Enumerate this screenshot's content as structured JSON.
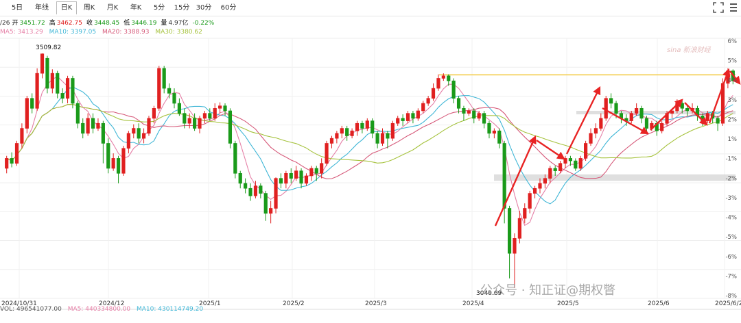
{
  "tabs": [
    {
      "label": "5日",
      "active": false
    },
    {
      "label": "年线",
      "active": false
    },
    {
      "label": "日K",
      "active": true
    },
    {
      "label": "周K",
      "active": false
    },
    {
      "label": "月K",
      "active": false
    },
    {
      "label": "年K",
      "active": false
    },
    {
      "label": "5分",
      "active": false
    },
    {
      "label": "15分",
      "active": false
    },
    {
      "label": "30分",
      "active": false
    },
    {
      "label": "60分",
      "active": false
    }
  ],
  "info": {
    "date_fragment": "/26",
    "open_label": "开",
    "open": "3451.72",
    "high_label": "高",
    "high": "3462.75",
    "close_label": "收",
    "close": "3448.45",
    "low_label": "低",
    "low": "3446.19",
    "volume_label": "量",
    "volume": "4.97亿",
    "change": "-0.22%"
  },
  "ma": {
    "ma5": "MA5: 3413.29",
    "ma10": "MA10: 3397.05",
    "ma20": "MA20: 3388.93",
    "ma30": "MA30: 3380.62"
  },
  "volume_panel": {
    "vol": "VOL: 496541077.00",
    "ma5": "MA5: 440334800.00",
    "ma10": "MA10: 430114749.20"
  },
  "annotations": {
    "high": "3509.82",
    "low": "3040.69"
  },
  "watermark": {
    "text": "公众号 · 知正证@期权瞥",
    "logo": "sina 新浪财经"
  },
  "colors": {
    "up": "#e02020",
    "down": "#1a9a1a",
    "ma5": "#e57fa6",
    "ma10": "#3fb6d6",
    "ma20": "#d65a7a",
    "ma30": "#a5c23c",
    "resistance": "#f3c93e",
    "arrow": "#e82323",
    "zone": "#d7d7d7"
  },
  "chart_data": {
    "type": "candlestick",
    "x_tick_labels": [
      "2024/10/31",
      "2024/12",
      "2025/1",
      "2025/2",
      "2025/3",
      "2025/4",
      "2025/5",
      "2025/6",
      "2025/6/26"
    ],
    "right_axis_labels": [
      "6%",
      "5%",
      "4%",
      "3%",
      "2%",
      "1%",
      "-1%",
      "-2%",
      "-3%",
      "-4%",
      "-5%",
      "-6%",
      "-7%",
      "-8%"
    ],
    "ylim": [
      3020,
      3540
    ],
    "annotated_high": 3509.82,
    "annotated_low": 3040.69,
    "resistance_level": 3467,
    "candles": [
      [
        3280,
        3300,
        3270,
        3305
      ],
      [
        3300,
        3290,
        3282,
        3312
      ],
      [
        3290,
        3330,
        3285,
        3335
      ],
      [
        3330,
        3360,
        3320,
        3370
      ],
      [
        3360,
        3420,
        3350,
        3425
      ],
      [
        3420,
        3400,
        3390,
        3430
      ],
      [
        3400,
        3470,
        3395,
        3480
      ],
      [
        3470,
        3509,
        3460,
        3509.82
      ],
      [
        3500,
        3440,
        3430,
        3505
      ],
      [
        3440,
        3470,
        3430,
        3478
      ],
      [
        3470,
        3430,
        3420,
        3475
      ],
      [
        3430,
        3420,
        3410,
        3440
      ],
      [
        3420,
        3460,
        3410,
        3465
      ],
      [
        3460,
        3410,
        3400,
        3465
      ],
      [
        3410,
        3370,
        3360,
        3415
      ],
      [
        3370,
        3350,
        3340,
        3380
      ],
      [
        3350,
        3380,
        3345,
        3390
      ],
      [
        3380,
        3360,
        3350,
        3390
      ],
      [
        3360,
        3370,
        3355,
        3380
      ],
      [
        3370,
        3330,
        3290,
        3375
      ],
      [
        3330,
        3280,
        3270,
        3340
      ],
      [
        3280,
        3300,
        3275,
        3310
      ],
      [
        3300,
        3270,
        3250,
        3305
      ],
      [
        3270,
        3320,
        3265,
        3325
      ],
      [
        3320,
        3350,
        3310,
        3355
      ],
      [
        3350,
        3360,
        3340,
        3368
      ],
      [
        3360,
        3340,
        3330,
        3370
      ],
      [
        3340,
        3350,
        3330,
        3360
      ],
      [
        3350,
        3380,
        3345,
        3385
      ],
      [
        3380,
        3400,
        3370,
        3405
      ],
      [
        3400,
        3480,
        3395,
        3485
      ],
      [
        3480,
        3440,
        3430,
        3485
      ],
      [
        3440,
        3430,
        3420,
        3450
      ],
      [
        3430,
        3410,
        3400,
        3440
      ],
      [
        3410,
        3390,
        3385,
        3420
      ],
      [
        3390,
        3370,
        3360,
        3400
      ],
      [
        3370,
        3380,
        3360,
        3390
      ],
      [
        3380,
        3360,
        3355,
        3390
      ],
      [
        3360,
        3380,
        3350,
        3385
      ],
      [
        3380,
        3390,
        3370,
        3395
      ],
      [
        3390,
        3380,
        3375,
        3400
      ],
      [
        3380,
        3400,
        3375,
        3410
      ],
      [
        3400,
        3405,
        3390,
        3412
      ],
      [
        3405,
        3395,
        3385,
        3410
      ],
      [
        3395,
        3330,
        3320,
        3400
      ],
      [
        3330,
        3270,
        3260,
        3335
      ],
      [
        3270,
        3250,
        3240,
        3275
      ],
      [
        3250,
        3240,
        3230,
        3260
      ],
      [
        3240,
        3225,
        3215,
        3250
      ],
      [
        3225,
        3245,
        3220,
        3255
      ],
      [
        3245,
        3230,
        3220,
        3250
      ],
      [
        3230,
        3190,
        3175,
        3235
      ],
      [
        3190,
        3200,
        3170,
        3215
      ],
      [
        3200,
        3260,
        3190,
        3262
      ],
      [
        3260,
        3250,
        3240,
        3270
      ],
      [
        3250,
        3270,
        3240,
        3275
      ],
      [
        3270,
        3260,
        3250,
        3280
      ],
      [
        3260,
        3275,
        3255,
        3285
      ],
      [
        3275,
        3250,
        3240,
        3280
      ],
      [
        3250,
        3265,
        3245,
        3270
      ],
      [
        3265,
        3280,
        3255,
        3285
      ],
      [
        3280,
        3270,
        3255,
        3285
      ],
      [
        3270,
        3290,
        3260,
        3300
      ],
      [
        3290,
        3330,
        3285,
        3335
      ],
      [
        3330,
        3340,
        3320,
        3345
      ],
      [
        3340,
        3350,
        3330,
        3355
      ],
      [
        3350,
        3360,
        3340,
        3365
      ],
      [
        3360,
        3345,
        3335,
        3365
      ],
      [
        3345,
        3355,
        3340,
        3360
      ],
      [
        3355,
        3370,
        3345,
        3375
      ],
      [
        3370,
        3360,
        3350,
        3375
      ],
      [
        3360,
        3375,
        3355,
        3380
      ],
      [
        3375,
        3350,
        3340,
        3380
      ],
      [
        3350,
        3330,
        3320,
        3355
      ],
      [
        3330,
        3350,
        3325,
        3360
      ],
      [
        3350,
        3340,
        3320,
        3355
      ],
      [
        3340,
        3370,
        3335,
        3375
      ],
      [
        3370,
        3380,
        3365,
        3385
      ],
      [
        3380,
        3375,
        3365,
        3388
      ],
      [
        3375,
        3390,
        3370,
        3395
      ],
      [
        3390,
        3380,
        3370,
        3395
      ],
      [
        3380,
        3395,
        3375,
        3400
      ],
      [
        3395,
        3410,
        3390,
        3415
      ],
      [
        3410,
        3420,
        3405,
        3425
      ],
      [
        3420,
        3440,
        3415,
        3450
      ],
      [
        3440,
        3460,
        3435,
        3468
      ],
      [
        3460,
        3465,
        3455,
        3470
      ],
      [
        3465,
        3455,
        3445,
        3468
      ],
      [
        3455,
        3420,
        3410,
        3460
      ],
      [
        3420,
        3400,
        3390,
        3425
      ],
      [
        3400,
        3390,
        3375,
        3405
      ],
      [
        3390,
        3395,
        3385,
        3400
      ],
      [
        3395,
        3380,
        3370,
        3400
      ],
      [
        3380,
        3390,
        3375,
        3395
      ],
      [
        3390,
        3370,
        3360,
        3395
      ],
      [
        3370,
        3350,
        3340,
        3375
      ],
      [
        3350,
        3355,
        3340,
        3360
      ],
      [
        3355,
        3330,
        3320,
        3360
      ],
      [
        3330,
        3200,
        3170,
        3335
      ],
      [
        3200,
        3110,
        3060,
        3205
      ],
      [
        3110,
        3140,
        3040.69,
        3150
      ],
      [
        3140,
        3180,
        3130,
        3195
      ],
      [
        3180,
        3200,
        3170,
        3210
      ],
      [
        3200,
        3230,
        3190,
        3235
      ],
      [
        3230,
        3240,
        3220,
        3245
      ],
      [
        3240,
        3250,
        3230,
        3260
      ],
      [
        3250,
        3260,
        3240,
        3268
      ],
      [
        3260,
        3280,
        3250,
        3285
      ],
      [
        3280,
        3275,
        3265,
        3285
      ],
      [
        3275,
        3290,
        3270,
        3295
      ],
      [
        3290,
        3300,
        3280,
        3305
      ],
      [
        3300,
        3295,
        3285,
        3305
      ],
      [
        3295,
        3280,
        3275,
        3300
      ],
      [
        3280,
        3300,
        3275,
        3305
      ],
      [
        3300,
        3330,
        3295,
        3335
      ],
      [
        3330,
        3350,
        3325,
        3360
      ],
      [
        3350,
        3360,
        3340,
        3370
      ],
      [
        3360,
        3380,
        3355,
        3390
      ],
      [
        3380,
        3420,
        3375,
        3425
      ],
      [
        3420,
        3410,
        3400,
        3430
      ],
      [
        3410,
        3390,
        3380,
        3415
      ],
      [
        3390,
        3380,
        3370,
        3395
      ],
      [
        3380,
        3375,
        3365,
        3388
      ],
      [
        3375,
        3390,
        3370,
        3395
      ],
      [
        3390,
        3400,
        3385,
        3410
      ],
      [
        3400,
        3380,
        3370,
        3405
      ],
      [
        3380,
        3360,
        3350,
        3385
      ],
      [
        3360,
        3370,
        3355,
        3375
      ],
      [
        3370,
        3355,
        3345,
        3375
      ],
      [
        3355,
        3370,
        3350,
        3375
      ],
      [
        3370,
        3390,
        3365,
        3395
      ],
      [
        3390,
        3395,
        3380,
        3400
      ],
      [
        3395,
        3410,
        3390,
        3418
      ],
      [
        3410,
        3400,
        3390,
        3415
      ],
      [
        3400,
        3395,
        3385,
        3405
      ],
      [
        3395,
        3400,
        3390,
        3410
      ],
      [
        3400,
        3385,
        3375,
        3405
      ],
      [
        3385,
        3375,
        3365,
        3390
      ],
      [
        3375,
        3390,
        3370,
        3395
      ],
      [
        3390,
        3380,
        3370,
        3395
      ],
      [
        3380,
        3370,
        3355,
        3385
      ],
      [
        3370,
        3450,
        3365,
        3460
      ],
      [
        3450,
        3475,
        3440,
        3480
      ],
      [
        3475,
        3455,
        3448,
        3478
      ]
    ]
  }
}
